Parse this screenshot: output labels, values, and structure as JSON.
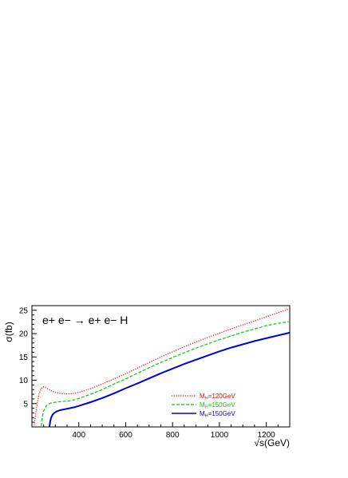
{
  "chart_data": {
    "type": "line",
    "title": "",
    "annotation": "e+ e− → e+ e− H",
    "xlabel": "√s(GeV)",
    "ylabel": "σ(fb)",
    "xlim": [
      200,
      1300
    ],
    "ylim": [
      0,
      26
    ],
    "x_ticks": [
      400,
      600,
      800,
      1000,
      1200
    ],
    "y_ticks": [
      5,
      10,
      15,
      20,
      25
    ],
    "grid": false,
    "legend_position": "bottom-right",
    "series": [
      {
        "name": "M_H=120GeV",
        "name_parts": {
          "main": "M",
          "sub": "H",
          "rest": "=120GeV"
        },
        "color": "#ff0000",
        "style": "dotted",
        "x": [
          210,
          220,
          230,
          240,
          250,
          260,
          270,
          280,
          300,
          320,
          340,
          360,
          380,
          400,
          450,
          500,
          550,
          600,
          650,
          700,
          750,
          800,
          850,
          900,
          950,
          1000,
          1050,
          1100,
          1150,
          1200,
          1250,
          1300
        ],
        "y": [
          0.3,
          4.2,
          7.0,
          8.3,
          8.6,
          8.4,
          8.1,
          7.8,
          7.4,
          7.2,
          7.1,
          7.1,
          7.2,
          7.4,
          8.2,
          9.2,
          10.3,
          11.4,
          12.6,
          13.8,
          15.0,
          16.1,
          17.2,
          18.2,
          19.2,
          20.1,
          21.0,
          21.9,
          22.7,
          23.6,
          24.5,
          25.3
        ]
      },
      {
        "name": "M_H=150GeV",
        "name_parts": {
          "main": "M",
          "sub": "H",
          "rest": "=150GeV"
        },
        "color": "#00cc00",
        "style": "dashed",
        "x": [
          240,
          245,
          250,
          260,
          270,
          280,
          290,
          300,
          320,
          340,
          360,
          380,
          400,
          450,
          500,
          550,
          600,
          650,
          700,
          750,
          800,
          850,
          900,
          950,
          1000,
          1050,
          1100,
          1150,
          1200,
          1250,
          1300
        ],
        "y": [
          0.2,
          2.3,
          3.4,
          4.4,
          4.9,
          5.1,
          5.2,
          5.3,
          5.4,
          5.5,
          5.6,
          5.8,
          6.1,
          7.0,
          8.0,
          9.2,
          10.3,
          11.5,
          12.7,
          13.8,
          14.9,
          15.9,
          16.9,
          17.8,
          18.7,
          19.5,
          20.3,
          21.0,
          21.7,
          22.2,
          22.6
        ]
      },
      {
        "name": "M_H=150GeV",
        "name_parts": {
          "main": "M",
          "sub": "H",
          "rest": "=150GeV"
        },
        "color": "#0000dd",
        "style": "solid",
        "x": [
          275,
          278,
          282,
          288,
          295,
          305,
          320,
          340,
          360,
          380,
          400,
          450,
          500,
          550,
          600,
          650,
          700,
          750,
          800,
          850,
          900,
          950,
          1000,
          1050,
          1100,
          1150,
          1200,
          1250,
          1300
        ],
        "y": [
          0.1,
          1.2,
          2.0,
          2.6,
          3.0,
          3.3,
          3.6,
          3.8,
          4.0,
          4.2,
          4.5,
          5.3,
          6.2,
          7.2,
          8.3,
          9.3,
          10.4,
          11.5,
          12.5,
          13.5,
          14.4,
          15.3,
          16.2,
          17.0,
          17.7,
          18.4,
          19.0,
          19.6,
          20.2
        ]
      }
    ]
  }
}
